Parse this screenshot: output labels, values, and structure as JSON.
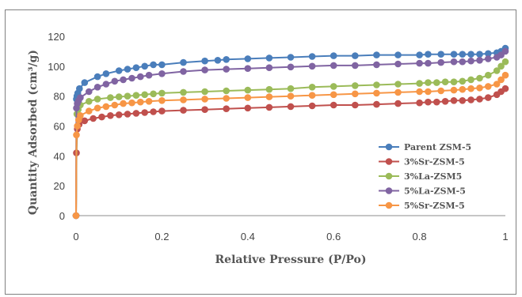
{
  "chart_data": {
    "type": "scatter",
    "xlabel": "Relative Pressure (P/Po)",
    "ylabel": "Quantity Adsorbed (cm³/g)",
    "xlim": [
      0,
      1
    ],
    "ylim": [
      0,
      120
    ],
    "xticks": [
      "0",
      "0.2",
      "0.4",
      "0.6",
      "0.8",
      "1"
    ],
    "yticks": [
      "0",
      "20",
      "40",
      "60",
      "80",
      "100",
      "120"
    ],
    "grid": false,
    "legend_position": "right",
    "series": [
      {
        "name": "Parent ZSM-5",
        "color": "#4a7ebb",
        "x": [
          0,
          0.001,
          0.002,
          0.004,
          0.008,
          0.02,
          0.05,
          0.07,
          0.1,
          0.12,
          0.14,
          0.16,
          0.18,
          0.2,
          0.25,
          0.3,
          0.33,
          0.35,
          0.4,
          0.45,
          0.5,
          0.55,
          0.6,
          0.65,
          0.7,
          0.75,
          0.8,
          0.82,
          0.85,
          0.88,
          0.9,
          0.92,
          0.94,
          0.96,
          0.98,
          0.99,
          1.0
        ],
        "y": [
          0,
          78,
          80,
          82,
          85,
          89,
          93,
          95,
          97,
          98,
          99,
          100,
          101,
          101,
          102.5,
          103.5,
          104,
          104.5,
          105,
          105.5,
          106,
          106.5,
          107,
          107,
          107.5,
          107.5,
          107.5,
          108,
          108,
          108,
          108,
          108,
          108,
          108.5,
          109,
          110,
          112
        ]
      },
      {
        "name": "3%Sr-ZSM-5",
        "color": "#c0504d",
        "x": [
          0,
          0.001,
          0.003,
          0.007,
          0.02,
          0.04,
          0.06,
          0.08,
          0.1,
          0.12,
          0.14,
          0.16,
          0.18,
          0.2,
          0.25,
          0.3,
          0.35,
          0.4,
          0.45,
          0.5,
          0.55,
          0.6,
          0.65,
          0.7,
          0.75,
          0.8,
          0.82,
          0.84,
          0.86,
          0.88,
          0.9,
          0.92,
          0.94,
          0.96,
          0.98,
          0.99,
          1.0
        ],
        "y": [
          0,
          42,
          58,
          61,
          63.5,
          65,
          66,
          67,
          67.5,
          68,
          68.5,
          69,
          69.5,
          70,
          70.5,
          71,
          71.5,
          72,
          72.5,
          73,
          73.5,
          74,
          74,
          74.5,
          75,
          75.5,
          76,
          76,
          76.5,
          77,
          77,
          77.5,
          78,
          79,
          81,
          83,
          85
        ]
      },
      {
        "name": "3%La-ZSM5",
        "color": "#9bbb59",
        "x": [
          0,
          0.002,
          0.005,
          0.01,
          0.03,
          0.05,
          0.08,
          0.1,
          0.12,
          0.14,
          0.16,
          0.18,
          0.2,
          0.25,
          0.3,
          0.35,
          0.4,
          0.45,
          0.5,
          0.55,
          0.6,
          0.65,
          0.7,
          0.75,
          0.8,
          0.82,
          0.84,
          0.86,
          0.88,
          0.9,
          0.92,
          0.94,
          0.96,
          0.98,
          0.99,
          1.0
        ],
        "y": [
          0,
          68,
          71,
          74,
          76.5,
          78,
          79,
          79.5,
          80,
          80.5,
          81,
          81.5,
          82,
          82.5,
          83,
          83.5,
          84,
          84.5,
          85,
          86,
          86.5,
          87,
          87.5,
          88,
          88.5,
          89,
          89,
          89.5,
          89.5,
          90,
          91,
          92,
          94,
          97,
          100,
          103
        ]
      },
      {
        "name": "5%La-ZSM-5",
        "color": "#8064a2",
        "x": [
          0,
          0.001,
          0.003,
          0.006,
          0.01,
          0.03,
          0.05,
          0.07,
          0.09,
          0.11,
          0.13,
          0.15,
          0.17,
          0.2,
          0.25,
          0.3,
          0.35,
          0.4,
          0.45,
          0.5,
          0.55,
          0.6,
          0.65,
          0.7,
          0.75,
          0.8,
          0.82,
          0.85,
          0.88,
          0.9,
          0.92,
          0.94,
          0.96,
          0.98,
          0.99,
          1.0
        ],
        "y": [
          0,
          72,
          75,
          77,
          79,
          83,
          86,
          88,
          90,
          91,
          92,
          93,
          94,
          95,
          96.5,
          97.5,
          98,
          98.5,
          99,
          99.5,
          100,
          100.5,
          100.5,
          101,
          101.5,
          102,
          102,
          102.5,
          103,
          103,
          103.5,
          104,
          105,
          106,
          107.5,
          110
        ]
      },
      {
        "name": "5%Sr-ZSM-5",
        "color": "#f79646",
        "x": [
          0,
          0.001,
          0.003,
          0.006,
          0.01,
          0.03,
          0.05,
          0.07,
          0.09,
          0.11,
          0.13,
          0.15,
          0.17,
          0.2,
          0.25,
          0.3,
          0.35,
          0.4,
          0.45,
          0.5,
          0.55,
          0.6,
          0.65,
          0.7,
          0.75,
          0.8,
          0.82,
          0.85,
          0.88,
          0.9,
          0.92,
          0.94,
          0.96,
          0.98,
          0.99,
          1.0
        ],
        "y": [
          0,
          54,
          60,
          64,
          67,
          70,
          72,
          73,
          74,
          75,
          75.5,
          76,
          76.5,
          77,
          77.5,
          78,
          78.5,
          79,
          79.5,
          80,
          80.5,
          81,
          81.5,
          82,
          82.5,
          83,
          83,
          83.5,
          84,
          84.5,
          85,
          85.5,
          86.5,
          88,
          91,
          94
        ]
      }
    ]
  }
}
